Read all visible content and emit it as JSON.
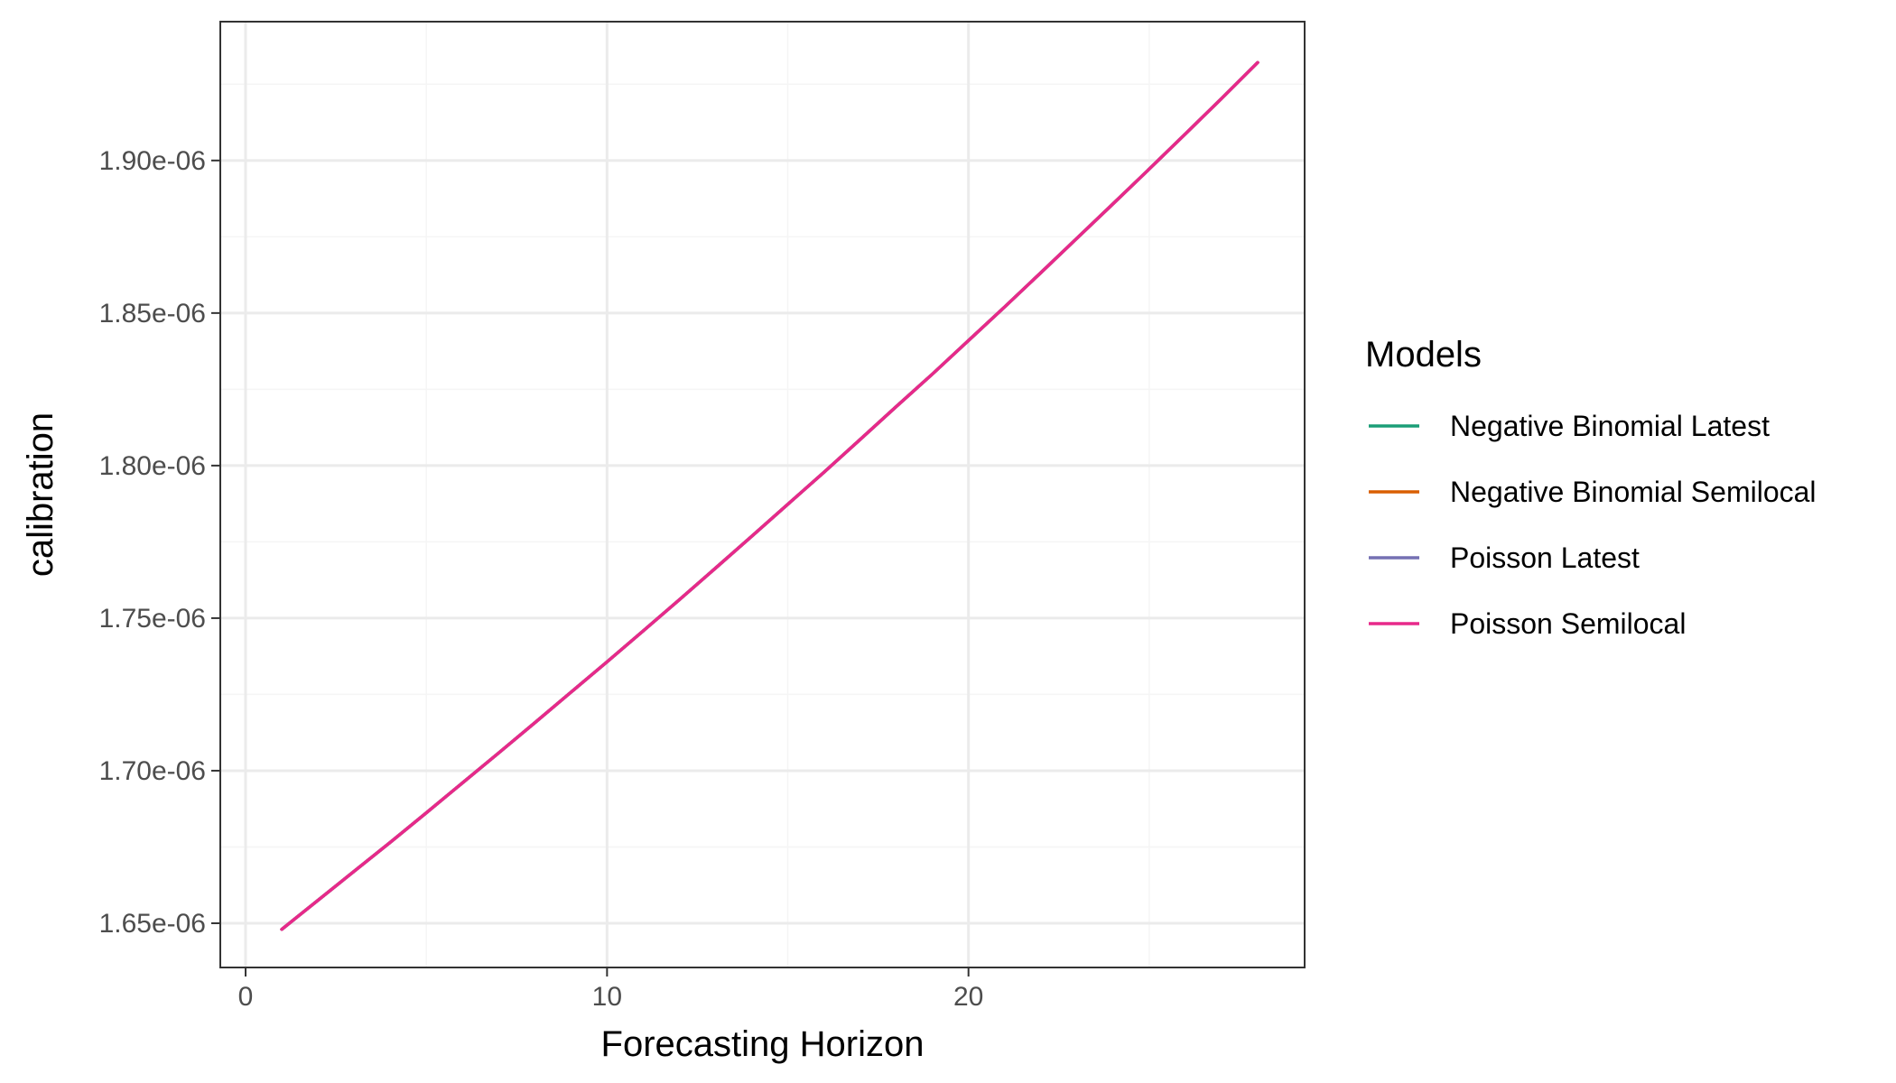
{
  "chart_data": {
    "type": "line",
    "title": "",
    "xlabel": "Forecasting Horizon",
    "ylabel": "calibration",
    "xlim": [
      -0.7,
      29.3
    ],
    "ylim": [
      1.6355e-06,
      1.9455e-06
    ],
    "x_ticks": [
      0,
      10,
      20
    ],
    "x_tick_labels": [
      "0",
      "10",
      "20"
    ],
    "y_ticks": [
      1.65e-06,
      1.7e-06,
      1.75e-06,
      1.8e-06,
      1.85e-06,
      1.9e-06
    ],
    "y_tick_labels": [
      "1.65e-06",
      "1.70e-06",
      "1.75e-06",
      "1.80e-06",
      "1.85e-06",
      "1.90e-06"
    ],
    "x_minor_ticks": [
      5,
      15,
      25
    ],
    "y_minor_ticks": [
      1.675e-06,
      1.725e-06,
      1.775e-06,
      1.825e-06,
      1.875e-06,
      1.925e-06
    ],
    "grid": true,
    "legend_title": "Models",
    "legend_position": "right",
    "x": [
      1,
      2,
      3,
      4,
      5,
      6,
      7,
      8,
      9,
      10,
      11,
      12,
      13,
      14,
      15,
      16,
      17,
      18,
      19,
      20,
      21,
      22,
      23,
      24,
      25,
      26,
      27,
      28
    ],
    "series": [
      {
        "name": "Negative Binomial Latest",
        "color": "#1b9e77",
        "values": [
          1.648e-06,
          1.6575e-06,
          1.667e-06,
          1.6765e-06,
          1.6862e-06,
          1.696e-06,
          1.7058e-06,
          1.7157e-06,
          1.7257e-06,
          1.7357e-06,
          1.7458e-06,
          1.756e-06,
          1.7664e-06,
          1.7768e-06,
          1.7873e-06,
          1.7978e-06,
          1.8085e-06,
          1.8193e-06,
          1.83e-06,
          1.841e-06,
          1.852e-06,
          1.8632e-06,
          1.8745e-06,
          1.8858e-06,
          1.8972e-06,
          1.9087e-06,
          1.9203e-06,
          1.9321e-06
        ]
      },
      {
        "name": "Negative Binomial Semilocal",
        "color": "#d95f02",
        "values": [
          1.648e-06,
          1.6575e-06,
          1.667e-06,
          1.6765e-06,
          1.6862e-06,
          1.696e-06,
          1.7058e-06,
          1.7157e-06,
          1.7257e-06,
          1.7357e-06,
          1.7458e-06,
          1.756e-06,
          1.7664e-06,
          1.7768e-06,
          1.7873e-06,
          1.7978e-06,
          1.8085e-06,
          1.8193e-06,
          1.83e-06,
          1.841e-06,
          1.852e-06,
          1.8632e-06,
          1.8745e-06,
          1.8858e-06,
          1.8972e-06,
          1.9087e-06,
          1.9203e-06,
          1.9321e-06
        ]
      },
      {
        "name": "Poisson Latest",
        "color": "#7570b3",
        "values": [
          1.648e-06,
          1.6575e-06,
          1.667e-06,
          1.6765e-06,
          1.6862e-06,
          1.696e-06,
          1.7058e-06,
          1.7157e-06,
          1.7257e-06,
          1.7357e-06,
          1.7458e-06,
          1.756e-06,
          1.7664e-06,
          1.7768e-06,
          1.7873e-06,
          1.7978e-06,
          1.8085e-06,
          1.8193e-06,
          1.83e-06,
          1.841e-06,
          1.852e-06,
          1.8632e-06,
          1.8745e-06,
          1.8858e-06,
          1.8972e-06,
          1.9087e-06,
          1.9203e-06,
          1.9321e-06
        ]
      },
      {
        "name": "Poisson Semilocal",
        "color": "#e7298a",
        "values": [
          1.648e-06,
          1.6575e-06,
          1.667e-06,
          1.6765e-06,
          1.6862e-06,
          1.696e-06,
          1.7058e-06,
          1.7157e-06,
          1.7257e-06,
          1.7357e-06,
          1.7458e-06,
          1.756e-06,
          1.7664e-06,
          1.7768e-06,
          1.7873e-06,
          1.7978e-06,
          1.8085e-06,
          1.8193e-06,
          1.83e-06,
          1.841e-06,
          1.852e-06,
          1.8632e-06,
          1.8745e-06,
          1.8858e-06,
          1.8972e-06,
          1.9087e-06,
          1.9203e-06,
          1.9321e-06
        ]
      }
    ]
  },
  "colors": {
    "panel_border": "#333333",
    "major_grid": "#ebebeb",
    "minor_grid": "#f5f5f5",
    "tick_label": "#4d4d4d"
  }
}
